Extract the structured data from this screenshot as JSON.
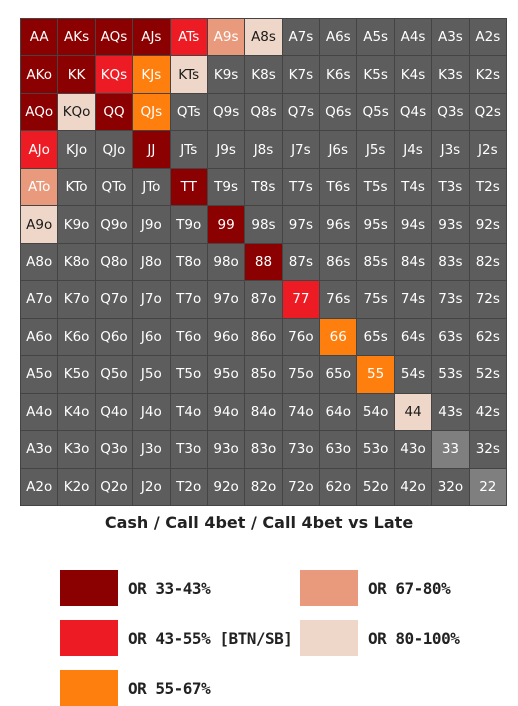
{
  "colors": {
    "or_33_43": "#8b0000",
    "or_43_55": "#ed1c24",
    "or_55_67": "#ff7f0e",
    "or_67_80": "#e99a7c",
    "or_80_100": "#eed7c8",
    "fold": "#5d5d5d",
    "pair_gray": "#7f7f7f"
  },
  "grid": {
    "rows": [
      [
        [
          "AA",
          "or_33_43"
        ],
        [
          "AKs",
          "or_33_43"
        ],
        [
          "AQs",
          "or_33_43"
        ],
        [
          "AJs",
          "or_33_43"
        ],
        [
          "ATs",
          "or_43_55"
        ],
        [
          "A9s",
          "or_67_80"
        ],
        [
          "A8s",
          "or_80_100"
        ],
        [
          "A7s",
          "fold"
        ],
        [
          "A6s",
          "fold"
        ],
        [
          "A5s",
          "fold"
        ],
        [
          "A4s",
          "fold"
        ],
        [
          "A3s",
          "fold"
        ],
        [
          "A2s",
          "fold"
        ]
      ],
      [
        [
          "AKo",
          "or_33_43"
        ],
        [
          "KK",
          "or_33_43"
        ],
        [
          "KQs",
          "or_43_55"
        ],
        [
          "KJs",
          "or_55_67"
        ],
        [
          "KTs",
          "or_80_100"
        ],
        [
          "K9s",
          "fold"
        ],
        [
          "K8s",
          "fold"
        ],
        [
          "K7s",
          "fold"
        ],
        [
          "K6s",
          "fold"
        ],
        [
          "K5s",
          "fold"
        ],
        [
          "K4s",
          "fold"
        ],
        [
          "K3s",
          "fold"
        ],
        [
          "K2s",
          "fold"
        ]
      ],
      [
        [
          "AQo",
          "or_33_43"
        ],
        [
          "KQo",
          "or_80_100"
        ],
        [
          "QQ",
          "or_33_43"
        ],
        [
          "QJs",
          "or_55_67"
        ],
        [
          "QTs",
          "fold"
        ],
        [
          "Q9s",
          "fold"
        ],
        [
          "Q8s",
          "fold"
        ],
        [
          "Q7s",
          "fold"
        ],
        [
          "Q6s",
          "fold"
        ],
        [
          "Q5s",
          "fold"
        ],
        [
          "Q4s",
          "fold"
        ],
        [
          "Q3s",
          "fold"
        ],
        [
          "Q2s",
          "fold"
        ]
      ],
      [
        [
          "AJo",
          "or_43_55"
        ],
        [
          "KJo",
          "fold"
        ],
        [
          "QJo",
          "fold"
        ],
        [
          "JJ",
          "or_33_43"
        ],
        [
          "JTs",
          "fold"
        ],
        [
          "J9s",
          "fold"
        ],
        [
          "J8s",
          "fold"
        ],
        [
          "J7s",
          "fold"
        ],
        [
          "J6s",
          "fold"
        ],
        [
          "J5s",
          "fold"
        ],
        [
          "J4s",
          "fold"
        ],
        [
          "J3s",
          "fold"
        ],
        [
          "J2s",
          "fold"
        ]
      ],
      [
        [
          "ATo",
          "or_67_80"
        ],
        [
          "KTo",
          "fold"
        ],
        [
          "QTo",
          "fold"
        ],
        [
          "JTo",
          "fold"
        ],
        [
          "TT",
          "or_33_43"
        ],
        [
          "T9s",
          "fold"
        ],
        [
          "T8s",
          "fold"
        ],
        [
          "T7s",
          "fold"
        ],
        [
          "T6s",
          "fold"
        ],
        [
          "T5s",
          "fold"
        ],
        [
          "T4s",
          "fold"
        ],
        [
          "T3s",
          "fold"
        ],
        [
          "T2s",
          "fold"
        ]
      ],
      [
        [
          "A9o",
          "or_80_100"
        ],
        [
          "K9o",
          "fold"
        ],
        [
          "Q9o",
          "fold"
        ],
        [
          "J9o",
          "fold"
        ],
        [
          "T9o",
          "fold"
        ],
        [
          "99",
          "or_33_43"
        ],
        [
          "98s",
          "fold"
        ],
        [
          "97s",
          "fold"
        ],
        [
          "96s",
          "fold"
        ],
        [
          "95s",
          "fold"
        ],
        [
          "94s",
          "fold"
        ],
        [
          "93s",
          "fold"
        ],
        [
          "92s",
          "fold"
        ]
      ],
      [
        [
          "A8o",
          "fold"
        ],
        [
          "K8o",
          "fold"
        ],
        [
          "Q8o",
          "fold"
        ],
        [
          "J8o",
          "fold"
        ],
        [
          "T8o",
          "fold"
        ],
        [
          "98o",
          "fold"
        ],
        [
          "88",
          "or_33_43"
        ],
        [
          "87s",
          "fold"
        ],
        [
          "86s",
          "fold"
        ],
        [
          "85s",
          "fold"
        ],
        [
          "84s",
          "fold"
        ],
        [
          "83s",
          "fold"
        ],
        [
          "82s",
          "fold"
        ]
      ],
      [
        [
          "A7o",
          "fold"
        ],
        [
          "K7o",
          "fold"
        ],
        [
          "Q7o",
          "fold"
        ],
        [
          "J7o",
          "fold"
        ],
        [
          "T7o",
          "fold"
        ],
        [
          "97o",
          "fold"
        ],
        [
          "87o",
          "fold"
        ],
        [
          "77",
          "or_43_55"
        ],
        [
          "76s",
          "fold"
        ],
        [
          "75s",
          "fold"
        ],
        [
          "74s",
          "fold"
        ],
        [
          "73s",
          "fold"
        ],
        [
          "72s",
          "fold"
        ]
      ],
      [
        [
          "A6o",
          "fold"
        ],
        [
          "K6o",
          "fold"
        ],
        [
          "Q6o",
          "fold"
        ],
        [
          "J6o",
          "fold"
        ],
        [
          "T6o",
          "fold"
        ],
        [
          "96o",
          "fold"
        ],
        [
          "86o",
          "fold"
        ],
        [
          "76o",
          "fold"
        ],
        [
          "66",
          "or_55_67"
        ],
        [
          "65s",
          "fold"
        ],
        [
          "64s",
          "fold"
        ],
        [
          "63s",
          "fold"
        ],
        [
          "62s",
          "fold"
        ]
      ],
      [
        [
          "A5o",
          "fold"
        ],
        [
          "K5o",
          "fold"
        ],
        [
          "Q5o",
          "fold"
        ],
        [
          "J5o",
          "fold"
        ],
        [
          "T5o",
          "fold"
        ],
        [
          "95o",
          "fold"
        ],
        [
          "85o",
          "fold"
        ],
        [
          "75o",
          "fold"
        ],
        [
          "65o",
          "fold"
        ],
        [
          "55",
          "or_55_67"
        ],
        [
          "54s",
          "fold"
        ],
        [
          "53s",
          "fold"
        ],
        [
          "52s",
          "fold"
        ]
      ],
      [
        [
          "A4o",
          "fold"
        ],
        [
          "K4o",
          "fold"
        ],
        [
          "Q4o",
          "fold"
        ],
        [
          "J4o",
          "fold"
        ],
        [
          "T4o",
          "fold"
        ],
        [
          "94o",
          "fold"
        ],
        [
          "84o",
          "fold"
        ],
        [
          "74o",
          "fold"
        ],
        [
          "64o",
          "fold"
        ],
        [
          "54o",
          "fold"
        ],
        [
          "44",
          "or_80_100"
        ],
        [
          "43s",
          "fold"
        ],
        [
          "42s",
          "fold"
        ]
      ],
      [
        [
          "A3o",
          "fold"
        ],
        [
          "K3o",
          "fold"
        ],
        [
          "Q3o",
          "fold"
        ],
        [
          "J3o",
          "fold"
        ],
        [
          "T3o",
          "fold"
        ],
        [
          "93o",
          "fold"
        ],
        [
          "83o",
          "fold"
        ],
        [
          "73o",
          "fold"
        ],
        [
          "63o",
          "fold"
        ],
        [
          "53o",
          "fold"
        ],
        [
          "43o",
          "fold"
        ],
        [
          "33",
          "pair_gray"
        ],
        [
          "32s",
          "fold"
        ]
      ],
      [
        [
          "A2o",
          "fold"
        ],
        [
          "K2o",
          "fold"
        ],
        [
          "Q2o",
          "fold"
        ],
        [
          "J2o",
          "fold"
        ],
        [
          "T2o",
          "fold"
        ],
        [
          "92o",
          "fold"
        ],
        [
          "82o",
          "fold"
        ],
        [
          "72o",
          "fold"
        ],
        [
          "62o",
          "fold"
        ],
        [
          "52o",
          "fold"
        ],
        [
          "42o",
          "fold"
        ],
        [
          "32o",
          "fold"
        ],
        [
          "22",
          "pair_gray"
        ]
      ]
    ]
  },
  "title": "Cash / Call 4bet / Call 4bet vs Late",
  "legend": [
    {
      "label": "OR 33-43%",
      "color_key": "or_33_43"
    },
    {
      "label": "OR 43-55% [BTN/SB]",
      "color_key": "or_43_55"
    },
    {
      "label": "OR 55-67%",
      "color_key": "or_55_67"
    },
    {
      "label": "OR 67-80%",
      "color_key": "or_67_80"
    },
    {
      "label": "OR 80-100%",
      "color_key": "or_80_100"
    }
  ]
}
